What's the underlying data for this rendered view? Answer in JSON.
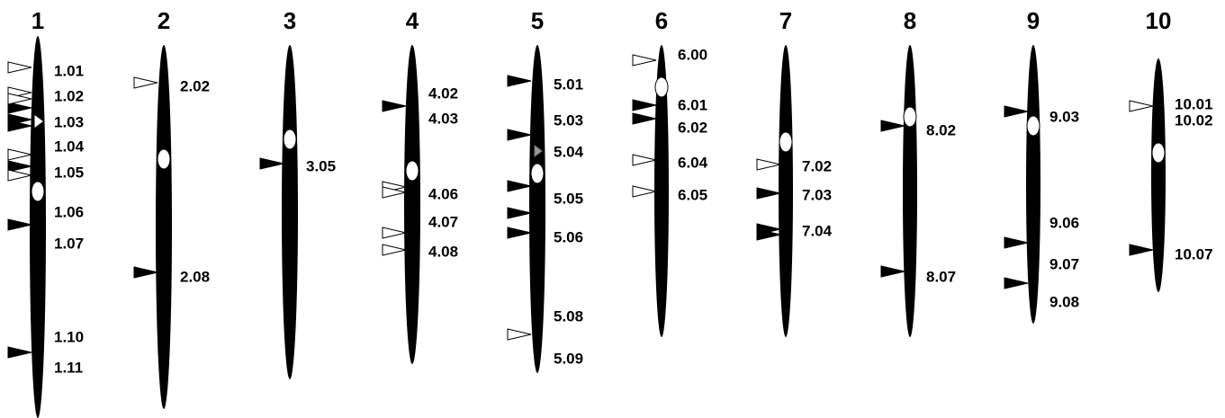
{
  "chromosomes": [
    {
      "label": "1",
      "bins": [
        "1.01",
        "1.02",
        "1.03",
        "1.04",
        "1.05",
        "1.06",
        "1.07",
        "1.10",
        "1.11"
      ]
    },
    {
      "label": "2",
      "bins": [
        "2.02",
        "2.08"
      ]
    },
    {
      "label": "3",
      "bins": [
        "3.05"
      ]
    },
    {
      "label": "4",
      "bins": [
        "4.02",
        "4.03",
        "4.06",
        "4.07",
        "4.08"
      ]
    },
    {
      "label": "5",
      "bins": [
        "5.01",
        "5.03",
        "5.04",
        "5.05",
        "5.06",
        "5.08",
        "5.09"
      ]
    },
    {
      "label": "6",
      "bins": [
        "6.00",
        "6.01",
        "6.02",
        "6.04",
        "6.05"
      ]
    },
    {
      "label": "7",
      "bins": [
        "7.02",
        "7.03",
        "7.04"
      ]
    },
    {
      "label": "8",
      "bins": [
        "8.02",
        "8.07"
      ]
    },
    {
      "label": "9",
      "bins": [
        "9.03",
        "9.06",
        "9.07",
        "9.08"
      ]
    },
    {
      "label": "10",
      "bins": [
        "10.01",
        "10.02",
        "10.07"
      ]
    }
  ]
}
